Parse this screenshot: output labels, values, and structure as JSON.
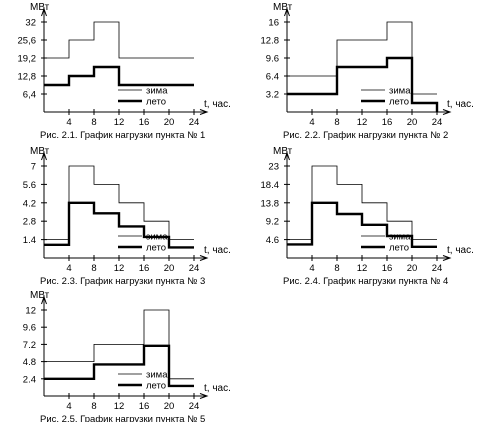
{
  "chart_data": [
    {
      "type": "line",
      "title": "Рис. 2.1. График нагрузки пункта № 1",
      "ylabel": "МВт",
      "xlabel": "t, час.",
      "xlim": [
        0,
        24
      ],
      "ylim": [
        0,
        32
      ],
      "x_ticks": [
        4,
        8,
        12,
        16,
        20,
        24
      ],
      "y_ticks": [
        "6,4",
        "12,8",
        "19,2",
        "25,6",
        "32"
      ],
      "legend": [
        "зима",
        "лето"
      ],
      "legend_position": "bottom-right",
      "series": [
        {
          "name": "зима",
          "steps": [
            [
              0,
              19.2
            ],
            [
              4,
              25.6
            ],
            [
              8,
              32
            ],
            [
              12,
              19.2
            ],
            [
              24,
              19.2
            ]
          ]
        },
        {
          "name": "лето",
          "steps": [
            [
              0,
              9.6
            ],
            [
              4,
              12.8
            ],
            [
              8,
              16
            ],
            [
              12,
              9.6
            ],
            [
              24,
              9.6
            ]
          ]
        }
      ]
    },
    {
      "type": "line",
      "title": "Рис. 2.2. График нагрузки пункта № 2",
      "ylabel": "МВт",
      "xlabel": "t, час.",
      "xlim": [
        0,
        24
      ],
      "ylim": [
        0,
        16
      ],
      "x_ticks": [
        4,
        8,
        12,
        16,
        20,
        24
      ],
      "y_ticks": [
        "3.2",
        "6.4",
        "9.6",
        "12.8",
        "16"
      ],
      "legend": [
        "зима",
        "лето"
      ],
      "legend_position": "bottom-right",
      "series": [
        {
          "name": "зима",
          "steps": [
            [
              0,
              6.4
            ],
            [
              8,
              12.8
            ],
            [
              16,
              16
            ],
            [
              20,
              3.2
            ],
            [
              24,
              3.2
            ]
          ]
        },
        {
          "name": "лето",
          "steps": [
            [
              0,
              3.2
            ],
            [
              8,
              8
            ],
            [
              16,
              9.6
            ],
            [
              20,
              1.6
            ],
            [
              24,
              0
            ]
          ]
        }
      ]
    },
    {
      "type": "line",
      "title": "Рис. 2.3. График нагрузки пункта № 3",
      "ylabel": "МВт",
      "xlabel": "t, час.",
      "xlim": [
        0,
        24
      ],
      "ylim": [
        0,
        7
      ],
      "x_ticks": [
        4,
        8,
        12,
        16,
        20,
        24
      ],
      "y_ticks": [
        "1.4",
        "2.8",
        "4.2",
        "5.6",
        "7"
      ],
      "legend": [
        "зима",
        "лето"
      ],
      "legend_position": "bottom-right",
      "series": [
        {
          "name": "зима",
          "steps": [
            [
              0,
              1.4
            ],
            [
              4,
              7
            ],
            [
              8,
              5.6
            ],
            [
              12,
              4.2
            ],
            [
              16,
              2.8
            ],
            [
              20,
              1.4
            ],
            [
              24,
              1.4
            ]
          ]
        },
        {
          "name": "лето",
          "steps": [
            [
              0,
              1
            ],
            [
              4,
              4.2
            ],
            [
              8,
              3.4
            ],
            [
              12,
              2.4
            ],
            [
              16,
              1.6
            ],
            [
              20,
              0.8
            ],
            [
              24,
              0.8
            ]
          ]
        }
      ]
    },
    {
      "type": "line",
      "title": "Рис. 2.4. График нагрузки пункта № 4",
      "ylabel": "МВт",
      "xlabel": "t, час.",
      "xlim": [
        0,
        24
      ],
      "ylim": [
        0,
        23
      ],
      "x_ticks": [
        4,
        8,
        12,
        16,
        20,
        24
      ],
      "y_ticks": [
        "4.6",
        "9.2",
        "13.8",
        "18.4",
        "23"
      ],
      "legend": [
        "зима",
        "лето"
      ],
      "legend_position": "bottom-right",
      "series": [
        {
          "name": "зима",
          "steps": [
            [
              0,
              4.6
            ],
            [
              4,
              23
            ],
            [
              8,
              18.4
            ],
            [
              12,
              13.8
            ],
            [
              16,
              9.2
            ],
            [
              20,
              4.6
            ],
            [
              24,
              4.6
            ]
          ]
        },
        {
          "name": "лето",
          "steps": [
            [
              0,
              3.4
            ],
            [
              4,
              13.8
            ],
            [
              8,
              11
            ],
            [
              12,
              8.3
            ],
            [
              16,
              5.5
            ],
            [
              20,
              2.8
            ],
            [
              24,
              2.8
            ]
          ]
        }
      ]
    },
    {
      "type": "line",
      "title": "Рис. 2.5. График нагрузки пункта № 5",
      "ylabel": "МВт",
      "xlabel": "t, час.",
      "xlim": [
        0,
        24
      ],
      "ylim": [
        0,
        12
      ],
      "x_ticks": [
        4,
        8,
        12,
        16,
        20,
        24
      ],
      "y_ticks": [
        "2.4",
        "4.8",
        "7.2",
        "9.6",
        "12"
      ],
      "legend": [
        "зима",
        "лето"
      ],
      "legend_position": "bottom-right",
      "series": [
        {
          "name": "зима",
          "steps": [
            [
              0,
              4.8
            ],
            [
              8,
              7.2
            ],
            [
              16,
              12
            ],
            [
              20,
              2.4
            ],
            [
              24,
              2.4
            ]
          ]
        },
        {
          "name": "лето",
          "steps": [
            [
              0,
              2.4
            ],
            [
              8,
              4.4
            ],
            [
              16,
              7
            ],
            [
              20,
              1.4
            ],
            [
              24,
              1.4
            ]
          ]
        }
      ]
    }
  ]
}
